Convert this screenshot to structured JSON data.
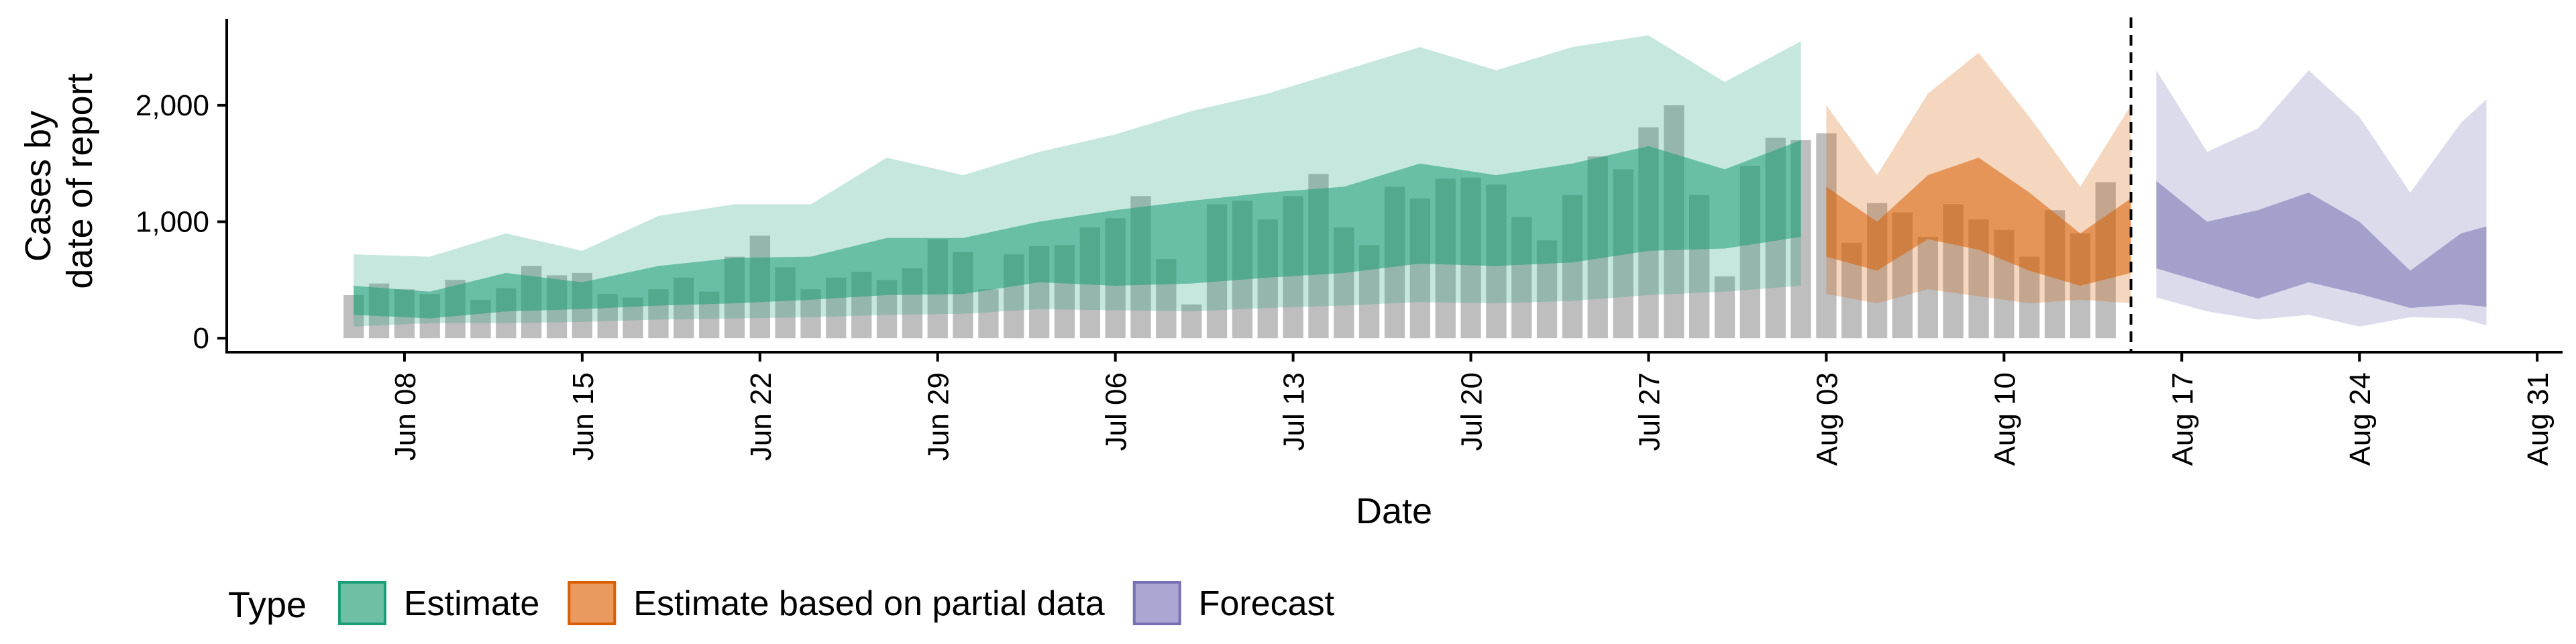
{
  "chart_data": {
    "type": "area",
    "xlabel": "Date",
    "ylabel_lines": [
      "Cases by",
      "date of report"
    ],
    "ylim": [
      -120,
      2800
    ],
    "xlim": [
      "2020-06-01",
      "2020-09-01"
    ],
    "y_ticks": [
      {
        "value": 0,
        "label": "0"
      },
      {
        "value": 1000,
        "label": "1,000"
      },
      {
        "value": 2000,
        "label": "2,000"
      }
    ],
    "x_ticks": [
      {
        "date": "2020-06-08",
        "label": "Jun 08"
      },
      {
        "date": "2020-06-15",
        "label": "Jun 15"
      },
      {
        "date": "2020-06-22",
        "label": "Jun 22"
      },
      {
        "date": "2020-06-29",
        "label": "Jun 29"
      },
      {
        "date": "2020-07-06",
        "label": "Jul 06"
      },
      {
        "date": "2020-07-13",
        "label": "Jul 13"
      },
      {
        "date": "2020-07-20",
        "label": "Jul 20"
      },
      {
        "date": "2020-07-27",
        "label": "Jul 27"
      },
      {
        "date": "2020-08-03",
        "label": "Aug 03"
      },
      {
        "date": "2020-08-10",
        "label": "Aug 10"
      },
      {
        "date": "2020-08-17",
        "label": "Aug 17"
      },
      {
        "date": "2020-08-24",
        "label": "Aug 24"
      },
      {
        "date": "2020-08-31",
        "label": "Aug 31"
      }
    ],
    "observed_start": "2020-06-06",
    "observed_cases": [
      370,
      470,
      420,
      380,
      500,
      330,
      430,
      620,
      540,
      560,
      380,
      350,
      420,
      520,
      400,
      700,
      880,
      610,
      420,
      520,
      570,
      500,
      600,
      850,
      740,
      420,
      720,
      790,
      800,
      950,
      1030,
      1220,
      680,
      290,
      1150,
      1180,
      1020,
      1220,
      1410,
      950,
      800,
      1300,
      1200,
      1370,
      1380,
      1320,
      1040,
      840,
      1230,
      1560,
      1450,
      1810,
      2000,
      1230,
      530,
      1480,
      1720,
      1700,
      1760,
      820,
      1160,
      1080,
      870,
      1150,
      1020,
      930,
      700,
      1100,
      900,
      1340
    ],
    "estimate_dates": [
      "2020-06-06",
      "2020-06-09",
      "2020-06-12",
      "2020-06-15",
      "2020-06-18",
      "2020-06-21",
      "2020-06-24",
      "2020-06-27",
      "2020-06-30",
      "2020-07-03",
      "2020-07-06",
      "2020-07-09",
      "2020-07-12",
      "2020-07-15",
      "2020-07-18",
      "2020-07-21",
      "2020-07-24",
      "2020-07-27",
      "2020-07-30",
      "2020-08-02"
    ],
    "partial_dates": [
      "2020-08-03",
      "2020-08-05",
      "2020-08-07",
      "2020-08-09",
      "2020-08-11",
      "2020-08-13",
      "2020-08-15"
    ],
    "forecast_dates": [
      "2020-08-16",
      "2020-08-18",
      "2020-08-20",
      "2020-08-22",
      "2020-08-24",
      "2020-08-26",
      "2020-08-28",
      "2020-08-29"
    ],
    "series": [
      {
        "name": "Estimate",
        "color": "#1b9e77",
        "outer_low": [
          100,
          130,
          130,
          140,
          160,
          170,
          180,
          200,
          210,
          250,
          240,
          230,
          260,
          280,
          310,
          300,
          320,
          370,
          400,
          450
        ],
        "outer_high": [
          720,
          700,
          900,
          750,
          1050,
          1150,
          1150,
          1550,
          1400,
          1600,
          1750,
          1950,
          2100,
          2300,
          2500,
          2300,
          2500,
          2600,
          2200,
          2550
        ],
        "inner_low": [
          200,
          170,
          230,
          250,
          280,
          300,
          330,
          370,
          380,
          480,
          450,
          470,
          520,
          560,
          640,
          620,
          650,
          750,
          770,
          870
        ],
        "inner_high": [
          450,
          400,
          560,
          480,
          620,
          690,
          700,
          860,
          860,
          1000,
          1100,
          1180,
          1250,
          1300,
          1500,
          1400,
          1500,
          1650,
          1450,
          1700
        ]
      },
      {
        "name": "Estimate based on partial data",
        "color": "#d95f02",
        "outer_low": [
          380,
          300,
          420,
          360,
          300,
          330,
          300
        ],
        "outer_high": [
          2000,
          1400,
          2100,
          2450,
          1900,
          1300,
          2000
        ],
        "inner_low": [
          700,
          580,
          850,
          760,
          580,
          450,
          560
        ],
        "inner_high": [
          1300,
          1000,
          1400,
          1550,
          1250,
          900,
          1200
        ]
      },
      {
        "name": "Forecast",
        "color": "#7570b3",
        "outer_low": [
          350,
          230,
          160,
          200,
          100,
          180,
          170,
          110
        ],
        "outer_high": [
          2300,
          1600,
          1800,
          2300,
          1900,
          1250,
          1850,
          2050
        ],
        "inner_low": [
          600,
          470,
          340,
          480,
          380,
          260,
          290,
          270
        ],
        "inner_high": [
          1350,
          1000,
          1100,
          1250,
          1000,
          580,
          900,
          960
        ]
      }
    ],
    "bar_color": "#b3b3b3",
    "forecast_date_line": "2020-08-15",
    "legend": {
      "title": "Type",
      "position": "bottom-left",
      "items": [
        {
          "label": "Estimate",
          "fill": "#6fbfa4",
          "stroke": "#1b9e77"
        },
        {
          "label": "Estimate based on partial data",
          "fill": "#e89a5f",
          "stroke": "#d95f02"
        },
        {
          "label": "Forecast",
          "fill": "#aaa7d3",
          "stroke": "#7570b3"
        }
      ]
    }
  }
}
